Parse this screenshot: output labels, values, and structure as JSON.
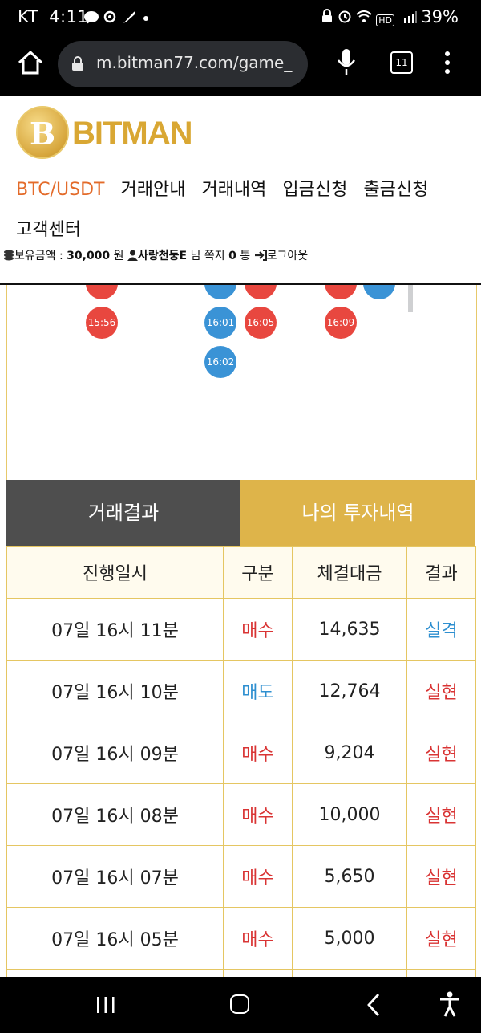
{
  "status": {
    "carrier": "KT",
    "time": "4:11",
    "battery": "39%",
    "left_icons": [
      "talk-icon",
      "location-icon",
      "feather-icon",
      "dot-icon"
    ],
    "right_icons": [
      "lock-icon",
      "alarm-icon",
      "wifi-icon",
      "hd-icon",
      "signal-icon"
    ],
    "hd_label": "HD"
  },
  "browser": {
    "url": "m.bitman77.com/game_",
    "tab_count": "11"
  },
  "site": {
    "brand": "BITMAN",
    "coin_letter": "B",
    "nav": [
      "BTC/USDT",
      "거래안내",
      "거래내역",
      "입금신청",
      "출금신청",
      "고객센터"
    ],
    "user": {
      "balance_label": "보유금액 :",
      "balance_value": "30,000",
      "balance_unit": "원",
      "username": "사랑천둥E",
      "honorific": "님",
      "message_label": "쪽지",
      "message_count": "0",
      "message_unit": "통",
      "logout": "로그아웃"
    }
  },
  "chart_dots": [
    {
      "label": "15:56",
      "color": "red"
    },
    {
      "label": "16:01",
      "color": "blue"
    },
    {
      "label": "16:05",
      "color": "red"
    },
    {
      "label": "16:09",
      "color": "red"
    },
    {
      "label": "16:02",
      "color": "blue"
    }
  ],
  "tabs": {
    "results": "거래결과",
    "my_history": "나의 투자내역"
  },
  "table": {
    "headers": [
      "진행일시",
      "구분",
      "체결대금",
      "결과"
    ],
    "rows": [
      {
        "time": "07일 16시 11분",
        "type": "매수",
        "amount": "14,635",
        "result": "실격"
      },
      {
        "time": "07일 16시 10분",
        "type": "매도",
        "amount": "12,764",
        "result": "실현"
      },
      {
        "time": "07일 16시 09분",
        "type": "매수",
        "amount": "9,204",
        "result": "실현"
      },
      {
        "time": "07일 16시 08분",
        "type": "매수",
        "amount": "10,000",
        "result": "실현"
      },
      {
        "time": "07일 16시 07분",
        "type": "매수",
        "amount": "5,650",
        "result": "실현"
      },
      {
        "time": "07일 16시 05분",
        "type": "매수",
        "amount": "5,000",
        "result": "실현"
      }
    ]
  },
  "colors": {
    "accent": "#e36b2a",
    "gold": "#deb44a",
    "buy_red": "#d93434",
    "sell_blue": "#2e8fd0"
  }
}
